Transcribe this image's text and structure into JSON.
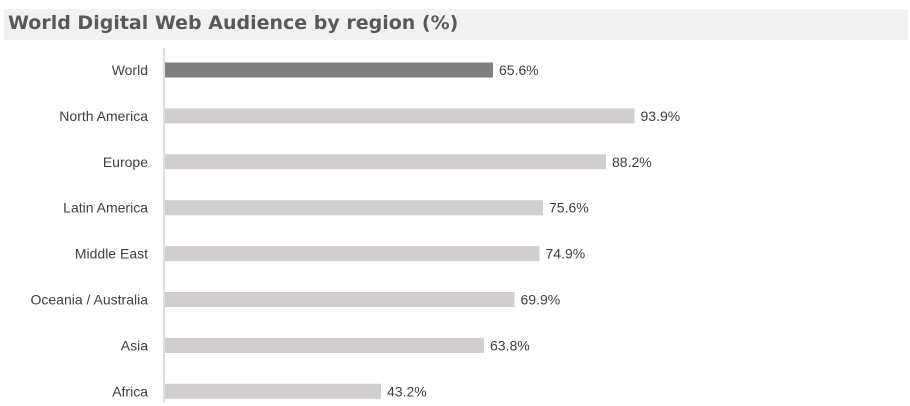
{
  "chart_data": {
    "type": "bar",
    "orientation": "horizontal",
    "title": "World Digital Web Audience by region (%)",
    "categories": [
      "World",
      "North America",
      "Europe",
      "Latin America",
      "Middle East",
      "Oceania / Australia",
      "Asia",
      "Africa"
    ],
    "values": [
      65.6,
      93.9,
      88.2,
      75.6,
      74.9,
      69.9,
      63.8,
      43.2
    ],
    "data_labels": [
      "65.6%",
      "93.9%",
      "88.2%",
      "75.6%",
      "74.9%",
      "69.9%",
      "63.8%",
      "43.2%"
    ],
    "highlight_category": "World",
    "xlim": [
      0,
      100
    ],
    "grid": false,
    "legend": "none",
    "colors": {
      "highlight_bar": "#7f7f7f",
      "bar": "#d0cece",
      "axis": "#bfbfbf",
      "label_text": "#404040",
      "title_text": "#595959",
      "title_band": "#f2f2f2"
    }
  }
}
